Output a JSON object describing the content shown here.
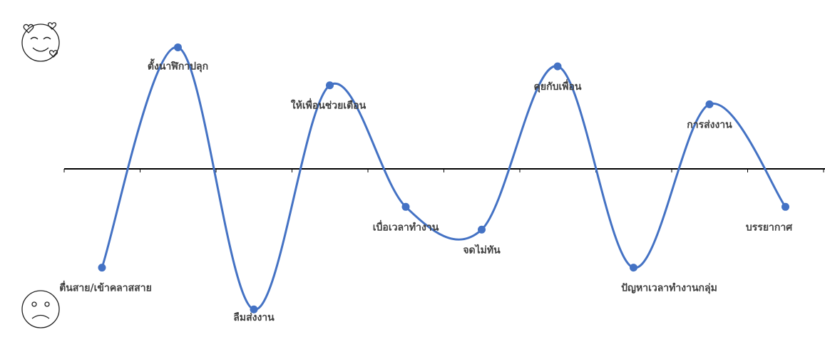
{
  "chart_data": {
    "type": "line",
    "smooth": true,
    "grid": false,
    "legend": "none",
    "x": [
      1,
      2,
      3,
      4,
      5,
      6,
      7,
      8,
      9,
      10
    ],
    "ylim": [
      -4,
      4
    ],
    "points": [
      {
        "label": "ตื่นสาย/เข้าคลาสสาย",
        "value": -2.6,
        "label_pos": "below"
      },
      {
        "label": "ตั้งนาฬิกาปลุก",
        "value": 3.2,
        "label_pos": "below"
      },
      {
        "label": "ลืมส่งงาน",
        "value": -3.7,
        "label_pos": "below"
      },
      {
        "label": "ให้เพื่อนช่วยเตือน",
        "value": 2.2,
        "label_pos": "below"
      },
      {
        "label": "เบื่อเวลาทำงาน",
        "value": -1.0,
        "label_pos": "below"
      },
      {
        "label": "จดไม่ทัน",
        "value": -1.6,
        "label_pos": "below"
      },
      {
        "label": "คุยกับเพื่อน",
        "value": 2.7,
        "label_pos": "below"
      },
      {
        "label": "ปัญหาเวลาทำงานกลุ่ม",
        "value": -2.6,
        "label_pos": "below"
      },
      {
        "label": "การส่งงาน",
        "value": 1.7,
        "label_pos": "below"
      },
      {
        "label": "บรรยากาศ",
        "value": -1.0,
        "label_pos": "below"
      }
    ],
    "colors": {
      "line": "#4472c4",
      "marker": "#4472c4",
      "axis": "#000000",
      "label": "#404040"
    }
  },
  "icons": {
    "top": "smiling-face-with-hearts-icon",
    "bottom": "sad-face-icon"
  }
}
